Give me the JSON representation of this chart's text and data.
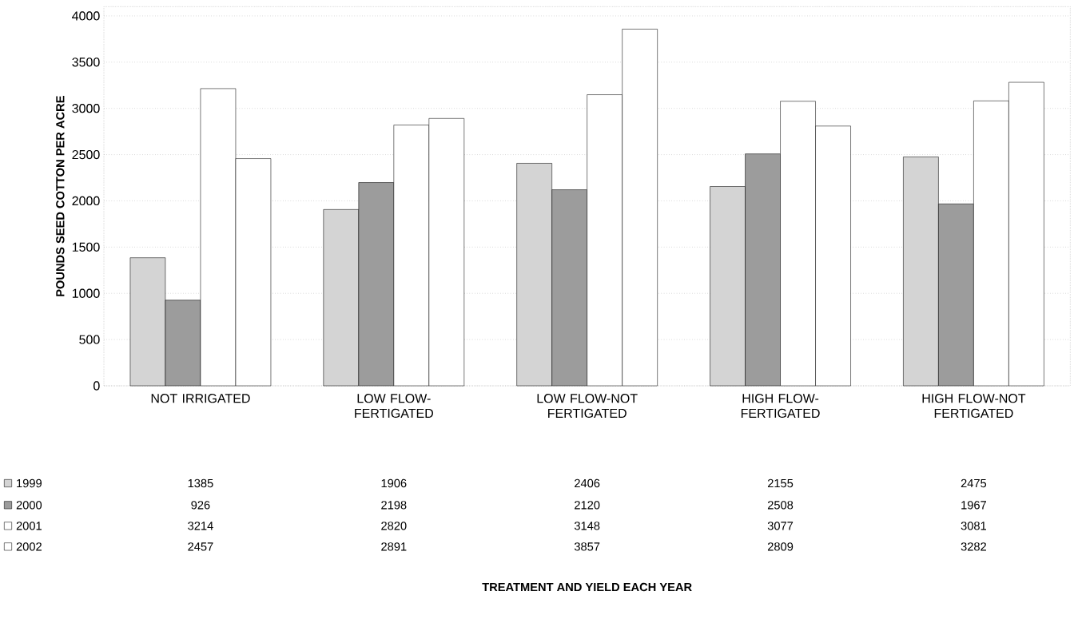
{
  "chart_data": {
    "type": "bar",
    "ylabel": "POUNDS SEED COTTON PER ACRE",
    "annotations": [
      "TREATMENT AND YIELD EACH YEAR"
    ],
    "categories": [
      "NOT IRRIGATED",
      "LOW FLOW-FERTIGATED",
      "LOW FLOW-NOT FERTIGATED",
      "HIGH FLOW-FERTIGATED",
      "HIGH FLOW-NOT FERTIGATED"
    ],
    "series": [
      {
        "name": "1999",
        "color": "#d4d4d4",
        "values": [
          1385,
          1906,
          2406,
          2155,
          2475
        ]
      },
      {
        "name": "2000",
        "color": "#9c9c9c",
        "values": [
          926,
          2198,
          2120,
          2508,
          1967
        ]
      },
      {
        "name": "2001",
        "color": "#ffffff",
        "values": [
          3214,
          2820,
          3148,
          3077,
          3081
        ]
      },
      {
        "name": "2002",
        "color": "#ffffff",
        "values": [
          2457,
          2891,
          3857,
          2809,
          3282
        ]
      }
    ],
    "ylim": [
      0,
      4100
    ],
    "yticks": [
      0,
      500,
      1000,
      1500,
      2000,
      2500,
      3000,
      3500,
      4000
    ],
    "grid": "y",
    "data_labels": true,
    "legend": "bottom left"
  }
}
